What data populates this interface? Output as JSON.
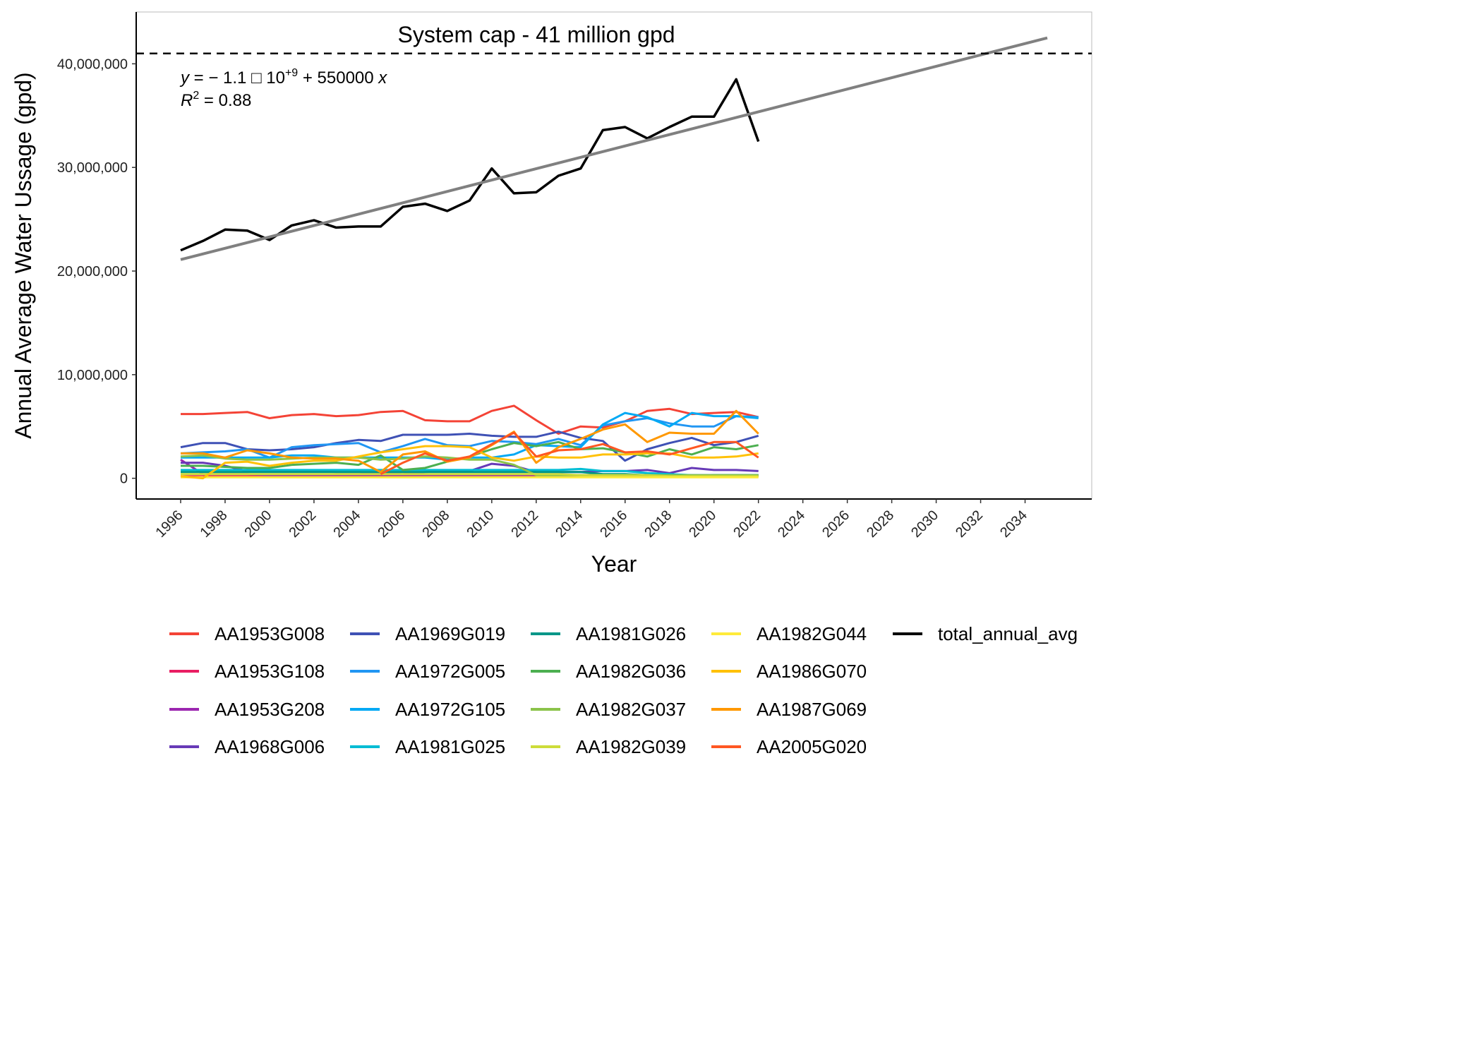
{
  "chart_data": {
    "type": "line",
    "xlabel": "Year",
    "ylabel": "Annual Average Water Ussage (gpd)",
    "xlim": [
      1994,
      2037
    ],
    "ylim": [
      -2000000,
      45000000
    ],
    "x_ticks": [
      1996,
      1998,
      2000,
      2002,
      2004,
      2006,
      2008,
      2010,
      2012,
      2014,
      2016,
      2018,
      2020,
      2022,
      2024,
      2026,
      2028,
      2030,
      2032,
      2034
    ],
    "x_tick_labels": [
      "1996",
      "1998",
      "2000",
      "2002",
      "2004",
      "2006",
      "2008",
      "2010",
      "2012",
      "2014",
      "2016",
      "2018",
      "2020",
      "2022",
      "2024",
      "2026",
      "2028",
      "2030",
      "2032",
      "2034"
    ],
    "y_ticks": [
      0,
      10000000,
      20000000,
      30000000,
      40000000
    ],
    "y_tick_labels": [
      "0",
      "10,000,000",
      "20,000,000",
      "30,000,000",
      "40,000,000"
    ],
    "grid": false,
    "legend_position": "bottom",
    "reference_line": {
      "y": 41000000,
      "label": "System cap - 41 million gpd",
      "style": "dashed",
      "color": "#000000"
    },
    "regression": {
      "x": [
        1996,
        2035
      ],
      "y": [
        21100000,
        42500000
      ],
      "color": "#808080",
      "equation_y_prefix": "y",
      "equation_rest": " = − 1.1 □ 10",
      "equation_sup": "+9",
      "equation_tail": " + 550000 ",
      "equation_x": "x",
      "r2_prefix": "R",
      "r2_sup": "2",
      "r2_value": " = 0.88"
    },
    "x": [
      1996,
      1997,
      1998,
      1999,
      2000,
      2001,
      2002,
      2003,
      2004,
      2005,
      2006,
      2007,
      2008,
      2009,
      2010,
      2011,
      2012,
      2013,
      2014,
      2015,
      2016,
      2017,
      2018,
      2019,
      2020,
      2021,
      2022
    ],
    "series": [
      {
        "name": "AA1953G008",
        "color": "#F44336",
        "values": [
          6200000,
          6200000,
          6300000,
          6400000,
          5800000,
          6100000,
          6200000,
          6000000,
          6100000,
          6400000,
          6500000,
          5600000,
          5500000,
          5500000,
          6500000,
          7000000,
          5600000,
          4300000,
          5000000,
          4900000,
          5500000,
          6500000,
          6700000,
          6200000,
          6300000,
          6400000,
          5900000
        ]
      },
      {
        "name": "AA1953G108",
        "color": "#E91E63",
        "values": [
          200000,
          200000,
          200000,
          200000,
          200000,
          200000,
          200000,
          200000,
          200000,
          200000,
          200000,
          200000,
          200000,
          200000,
          200000,
          200000,
          200000,
          200000,
          200000,
          200000,
          200000,
          200000,
          200000,
          200000,
          200000,
          200000,
          200000
        ]
      },
      {
        "name": "AA1953G208",
        "color": "#9C27B0",
        "values": [
          1800000,
          400000,
          400000,
          400000,
          300000,
          300000,
          300000,
          300000,
          300000,
          300000,
          300000,
          300000,
          300000,
          300000,
          300000,
          300000,
          300000,
          300000,
          300000,
          300000,
          300000,
          300000,
          300000,
          300000,
          300000,
          300000,
          300000
        ]
      },
      {
        "name": "AA1968G006",
        "color": "#673AB7",
        "values": [
          1500000,
          1500000,
          1200000,
          700000,
          700000,
          700000,
          700000,
          600000,
          600000,
          500000,
          400000,
          600000,
          700000,
          700000,
          1400000,
          1200000,
          600000,
          600000,
          600000,
          700000,
          700000,
          800000,
          500000,
          1000000,
          800000,
          800000,
          700000
        ]
      },
      {
        "name": "AA1969G019",
        "color": "#3F51B5",
        "values": [
          3000000,
          3400000,
          3400000,
          2800000,
          2700000,
          2800000,
          3000000,
          3400000,
          3700000,
          3600000,
          4200000,
          4200000,
          4200000,
          4300000,
          4100000,
          4000000,
          4000000,
          4500000,
          3900000,
          3600000,
          1700000,
          2800000,
          3400000,
          3900000,
          3200000,
          3500000,
          4100000
        ]
      },
      {
        "name": "AA1972G005",
        "color": "#2196F3",
        "values": [
          2400000,
          2500000,
          2600000,
          2800000,
          2000000,
          3000000,
          3200000,
          3300000,
          3400000,
          2500000,
          3100000,
          3800000,
          3200000,
          3100000,
          3600000,
          3500000,
          3300000,
          3800000,
          3200000,
          5100000,
          5500000,
          5800000,
          5300000,
          5000000,
          5000000,
          6000000,
          5900000
        ]
      },
      {
        "name": "AA1972G105",
        "color": "#03A9F4",
        "values": [
          2000000,
          2000000,
          2000000,
          2000000,
          2000000,
          2200000,
          2200000,
          2000000,
          2000000,
          2000000,
          2000000,
          2000000,
          1800000,
          2000000,
          2000000,
          2300000,
          3200000,
          3100000,
          3000000,
          5200000,
          6300000,
          5900000,
          5000000,
          6300000,
          6000000,
          6000000,
          5800000
        ]
      },
      {
        "name": "AA1981G025",
        "color": "#00BCD4",
        "values": [
          800000,
          800000,
          800000,
          800000,
          800000,
          800000,
          800000,
          800000,
          800000,
          800000,
          800000,
          800000,
          800000,
          800000,
          800000,
          800000,
          800000,
          800000,
          900000,
          700000,
          700000,
          500000,
          400000,
          300000,
          300000,
          300000,
          300000
        ]
      },
      {
        "name": "AA1981G026",
        "color": "#009688",
        "values": [
          600000,
          600000,
          600000,
          600000,
          600000,
          600000,
          600000,
          600000,
          600000,
          600000,
          600000,
          600000,
          600000,
          600000,
          600000,
          600000,
          600000,
          600000,
          600000,
          400000,
          400000,
          300000,
          200000,
          200000,
          300000,
          300000,
          300000
        ]
      },
      {
        "name": "AA1982G036",
        "color": "#4CAF50",
        "values": [
          1200000,
          1200000,
          1100000,
          1000000,
          1000000,
          1300000,
          1400000,
          1500000,
          1300000,
          2200000,
          800000,
          1000000,
          1600000,
          2100000,
          2800000,
          3400000,
          3100000,
          3500000,
          2800000,
          2900000,
          2500000,
          2100000,
          2800000,
          2300000,
          3000000,
          2800000,
          3200000
        ]
      },
      {
        "name": "AA1982G037",
        "color": "#8BC34A",
        "values": [
          2100000,
          2200000,
          1900000,
          1800000,
          1800000,
          1900000,
          2000000,
          2000000,
          2000000,
          1800000,
          1900000,
          2100000,
          2000000,
          1800000,
          1800000,
          1300000,
          300000,
          300000,
          300000,
          300000,
          300000,
          300000,
          300000,
          300000,
          300000,
          300000,
          300000
        ]
      },
      {
        "name": "AA1982G039",
        "color": "#CDDC39",
        "values": [
          400000,
          400000,
          400000,
          400000,
          400000,
          400000,
          400000,
          400000,
          400000,
          400000,
          400000,
          400000,
          400000,
          400000,
          400000,
          400000,
          400000,
          400000,
          300000,
          300000,
          300000,
          300000,
          200000,
          200000,
          200000,
          200000,
          200000
        ]
      },
      {
        "name": "AA1982G044",
        "color": "#FFEB3B",
        "values": [
          100000,
          100000,
          100000,
          100000,
          100000,
          100000,
          100000,
          100000,
          100000,
          100000,
          100000,
          100000,
          100000,
          100000,
          100000,
          100000,
          100000,
          100000,
          100000,
          100000,
          100000,
          100000,
          100000,
          100000,
          100000,
          100000,
          100000
        ]
      },
      {
        "name": "AA1986G070",
        "color": "#FFC107",
        "values": [
          200000,
          0,
          1500000,
          1600000,
          1200000,
          1500000,
          1700000,
          1700000,
          2100000,
          2500000,
          2800000,
          3100000,
          3100000,
          3000000,
          2000000,
          1700000,
          2100000,
          2000000,
          2000000,
          2300000,
          2300000,
          2400000,
          2400000,
          2000000,
          2000000,
          2100000,
          2400000
        ]
      },
      {
        "name": "AA1987G069",
        "color": "#FF9800",
        "values": [
          2400000,
          2400000,
          2000000,
          2700000,
          2400000,
          2000000,
          1900000,
          1900000,
          1700000,
          600000,
          2300000,
          2600000,
          1600000,
          2000000,
          3200000,
          4500000,
          1500000,
          3000000,
          3800000,
          4700000,
          5200000,
          3500000,
          4400000,
          4300000,
          4300000,
          6500000,
          4300000
        ]
      },
      {
        "name": "AA2005G020",
        "color": "#FF5722",
        "values": [
          null,
          null,
          null,
          null,
          null,
          null,
          null,
          null,
          null,
          400000,
          1500000,
          2400000,
          1700000,
          2100000,
          3300000,
          4400000,
          2100000,
          2700000,
          2800000,
          3300000,
          2500000,
          2600000,
          2300000,
          2900000,
          3500000,
          3500000,
          2000000
        ]
      },
      {
        "name": "total_annual_avg",
        "color": "#000000",
        "values": [
          22000000,
          22900000,
          24000000,
          23900000,
          23000000,
          24400000,
          24900000,
          24200000,
          24300000,
          24300000,
          26200000,
          26500000,
          25800000,
          26800000,
          29900000,
          27500000,
          27600000,
          29200000,
          29900000,
          33600000,
          33900000,
          32800000,
          33900000,
          34900000,
          34900000,
          38500000,
          32500000
        ]
      }
    ]
  }
}
